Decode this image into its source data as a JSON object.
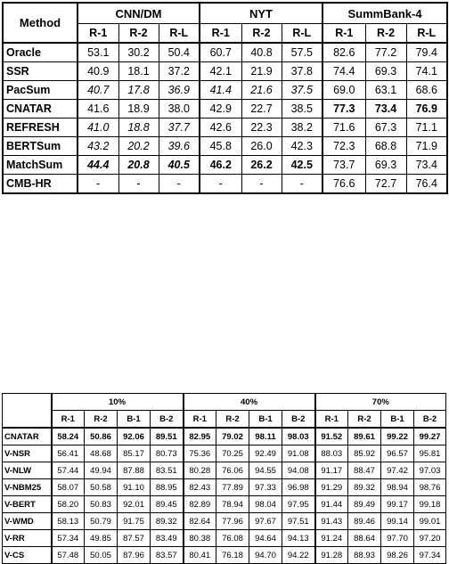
{
  "table1": {
    "method_header": "Method",
    "groups": [
      "CNN/DM",
      "NYT",
      "SummBank-4"
    ],
    "subheaders": [
      "R-1",
      "R-2",
      "R-L"
    ],
    "rows": [
      {
        "method": "Oracle",
        "values": [
          "53.1",
          "30.2",
          "50.4",
          "60.7",
          "40.8",
          "57.5",
          "82.6",
          "77.2",
          "79.4"
        ],
        "styles": [
          "",
          "",
          "",
          "",
          "",
          "",
          "",
          "",
          ""
        ]
      },
      {
        "method": "SSR",
        "values": [
          "40.9",
          "18.1",
          "37.2",
          "42.1",
          "21.9",
          "37.8",
          "74.4",
          "69.3",
          "74.1"
        ],
        "styles": [
          "",
          "",
          "",
          "",
          "",
          "",
          "",
          "",
          ""
        ]
      },
      {
        "method": "PacSum",
        "values": [
          "40.7",
          "17.8",
          "36.9",
          "41.4",
          "21.6",
          "37.5",
          "69.0",
          "63.1",
          "68.6"
        ],
        "styles": [
          "i",
          "i",
          "i",
          "i",
          "i",
          "i",
          "",
          "",
          ""
        ]
      },
      {
        "method": "CNATAR",
        "values": [
          "41.6",
          "18.9",
          "38.0",
          "42.9",
          "22.7",
          "38.5",
          "77.3",
          "73.4",
          "76.9"
        ],
        "styles": [
          "",
          "",
          "",
          "",
          "",
          "",
          "b",
          "b",
          "b"
        ]
      },
      {
        "method": "REFRESH",
        "values": [
          "41.0",
          "18.8",
          "37.7",
          "42.6",
          "22.3",
          "38.2",
          "71.6",
          "67.3",
          "71.1"
        ],
        "styles": [
          "i",
          "i",
          "i",
          "",
          "",
          "",
          "",
          "",
          ""
        ]
      },
      {
        "method": "BERTSum",
        "values": [
          "43.2",
          "20.2",
          "39.6",
          "45.8",
          "26.0",
          "42.3",
          "72.3",
          "68.8",
          "71.9"
        ],
        "styles": [
          "i",
          "i",
          "i",
          "",
          "",
          "",
          "",
          "",
          ""
        ]
      },
      {
        "method": "MatchSum",
        "values": [
          "44.4",
          "20.8",
          "40.5",
          "46.2",
          "26.2",
          "42.5",
          "73.7",
          "69.3",
          "73.4"
        ],
        "styles": [
          "bi",
          "bi",
          "bi",
          "b",
          "b",
          "b",
          "",
          "",
          ""
        ]
      },
      {
        "method": "CMB-HR",
        "values": [
          "-",
          "-",
          "-",
          "-",
          "-",
          "-",
          "76.6",
          "72.7",
          "76.4"
        ],
        "styles": [
          "",
          "",
          "",
          "",
          "",
          "",
          "",
          "",
          ""
        ]
      }
    ]
  },
  "table2": {
    "groups": [
      "10%",
      "40%",
      "70%"
    ],
    "subheaders": [
      "R-1",
      "R-2",
      "B-1",
      "B-2"
    ],
    "rows": [
      {
        "method": "CNATAR",
        "bold": true,
        "values": [
          "58.24",
          "50.86",
          "92.06",
          "89.51",
          "82.95",
          "79.02",
          "98.11",
          "98.03",
          "91.52",
          "89.61",
          "99.22",
          "99.27"
        ]
      },
      {
        "method": "V-NSR",
        "bold": false,
        "values": [
          "56.41",
          "48.68",
          "85.17",
          "80.73",
          "75.36",
          "70.25",
          "92.49",
          "91.08",
          "88.03",
          "85.92",
          "96.57",
          "95.81"
        ]
      },
      {
        "method": "V-NLW",
        "bold": false,
        "values": [
          "57.44",
          "49.94",
          "87.88",
          "83.51",
          "80.28",
          "76.06",
          "94.55",
          "94.08",
          "91.17",
          "88.47",
          "97.42",
          "97.03"
        ]
      },
      {
        "method": "V-NBM25",
        "bold": false,
        "values": [
          "58.07",
          "50.58",
          "91.10",
          "88.95",
          "82.43",
          "77.89",
          "97.33",
          "96.98",
          "91.29",
          "89.32",
          "98.94",
          "98.76"
        ]
      },
      {
        "method": "V-BERT",
        "bold": false,
        "values": [
          "58.20",
          "50.83",
          "92.01",
          "89.45",
          "82.89",
          "78.94",
          "98.04",
          "97.95",
          "91.44",
          "89.49",
          "99.17",
          "99.18"
        ]
      },
      {
        "method": "V-WMD",
        "bold": false,
        "values": [
          "58.13",
          "50.79",
          "91.75",
          "89.32",
          "82.64",
          "77.96",
          "97.67",
          "97.51",
          "91.43",
          "89.46",
          "99.14",
          "99.01"
        ]
      },
      {
        "method": "V-RR",
        "bold": false,
        "values": [
          "57.34",
          "49.85",
          "87.57",
          "83.49",
          "80.38",
          "76.08",
          "94.64",
          "94.13",
          "91.24",
          "88.64",
          "97.70",
          "97.20"
        ]
      },
      {
        "method": "V-CS",
        "bold": false,
        "values": [
          "57.48",
          "50.05",
          "87.96",
          "83.57",
          "80.41",
          "76.18",
          "94.70",
          "94.22",
          "91.28",
          "88.93",
          "98.26",
          "97.34"
        ]
      }
    ]
  }
}
